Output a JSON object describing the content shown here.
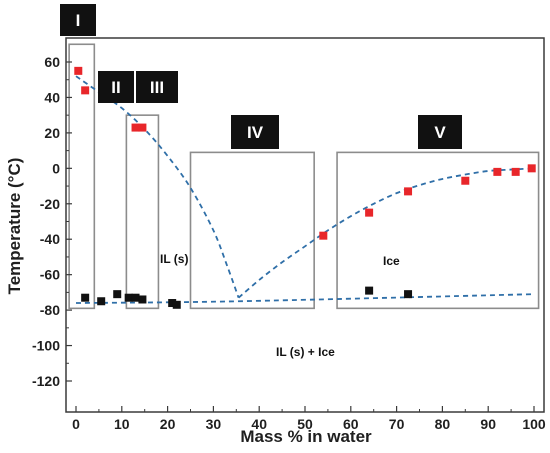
{
  "chart_data": {
    "type": "scatter",
    "xlabel": "Mass % in water",
    "ylabel": "Temperature (°C)",
    "xlim": [
      0,
      100
    ],
    "ylim": [
      -130,
      70
    ],
    "xticks": [
      0,
      10,
      20,
      30,
      40,
      50,
      60,
      70,
      80,
      90,
      100
    ],
    "yticks": [
      60,
      40,
      20,
      0,
      -20,
      -40,
      -60,
      -80,
      -100,
      -120
    ],
    "grid": false,
    "colors": {
      "liquidus_points": "#e8262a",
      "transition_points": "#111111",
      "fit_curve": "#2f6fa8",
      "region_box": "#8c8c8c",
      "region_label_bg": "#111111"
    },
    "series": [
      {
        "marker": "square",
        "color": "#e8262a",
        "points": [
          {
            "x": 0.5,
            "y": 55
          },
          {
            "x": 2,
            "y": 44
          },
          {
            "x": 13,
            "y": 23
          },
          {
            "x": 14.5,
            "y": 23
          },
          {
            "x": 54,
            "y": -38
          },
          {
            "x": 64,
            "y": -25
          },
          {
            "x": 72.5,
            "y": -13
          },
          {
            "x": 85,
            "y": -7
          },
          {
            "x": 92,
            "y": -2
          },
          {
            "x": 96,
            "y": -2
          },
          {
            "x": 99.5,
            "y": 0
          }
        ]
      },
      {
        "marker": "square",
        "color": "#111111",
        "points": [
          {
            "x": 2,
            "y": -73
          },
          {
            "x": 5.5,
            "y": -75
          },
          {
            "x": 9,
            "y": -71
          },
          {
            "x": 11.5,
            "y": -73
          },
          {
            "x": 13,
            "y": -73
          },
          {
            "x": 14.5,
            "y": -74
          },
          {
            "x": 21,
            "y": -76
          },
          {
            "x": 22,
            "y": -77
          },
          {
            "x": 64,
            "y": -69
          },
          {
            "x": 72.5,
            "y": -71
          }
        ]
      }
    ],
    "fit_curves": [
      {
        "style": "dashed",
        "color": "#2f6fa8",
        "points": [
          [
            0,
            52
          ],
          [
            5,
            43
          ],
          [
            10,
            34
          ],
          [
            15,
            22
          ],
          [
            20,
            7
          ],
          [
            25,
            -11
          ],
          [
            30,
            -35
          ],
          [
            33,
            -55
          ],
          [
            35.5,
            -73
          ]
        ]
      },
      {
        "style": "dashed",
        "color": "#2f6fa8",
        "points": [
          [
            35.5,
            -73
          ],
          [
            40,
            -63
          ],
          [
            45,
            -53
          ],
          [
            50,
            -44
          ],
          [
            55,
            -35
          ],
          [
            60,
            -27
          ],
          [
            65,
            -20
          ],
          [
            70,
            -14
          ],
          [
            75,
            -9.5
          ],
          [
            80,
            -6
          ],
          [
            85,
            -3.5
          ],
          [
            90,
            -1.5
          ],
          [
            95,
            -0.7
          ],
          [
            100,
            0
          ]
        ]
      },
      {
        "style": "dashed",
        "color": "#2f6fa8",
        "points": [
          [
            0,
            -76
          ],
          [
            35.5,
            -75
          ],
          [
            100,
            -71
          ]
        ]
      }
    ],
    "regions": [
      {
        "label": "I",
        "x_range": [
          -1.5,
          4
        ],
        "y_range": [
          -79,
          70
        ]
      },
      {
        "label": "II",
        "x_range": [
          11,
          18
        ],
        "y_range": [
          -79,
          30
        ]
      },
      {
        "label": "III",
        "x_range": [
          11,
          18
        ],
        "y_range": [
          -79,
          30
        ]
      },
      {
        "label": "IV",
        "x_range": [
          25,
          52
        ],
        "y_range": [
          -79,
          9
        ]
      },
      {
        "label": "V",
        "x_range": [
          57,
          101
        ],
        "y_range": [
          -79,
          9
        ]
      }
    ],
    "phase_labels": [
      "IL (s)",
      "Ice",
      "IL (s) + Ice"
    ]
  }
}
